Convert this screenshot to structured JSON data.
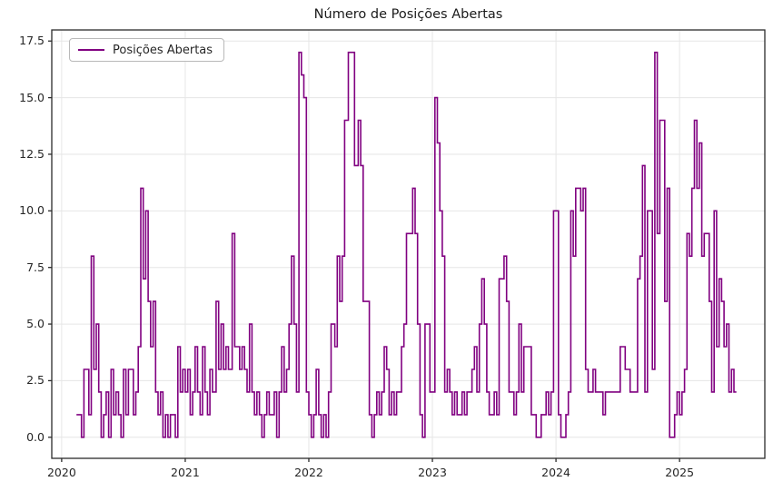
{
  "window": {
    "title": "Número de Posições Abertas"
  },
  "colors": {
    "line": "#800080",
    "grid": "#e6e6e6",
    "spine": "#2b2b2b",
    "tick": "#2b2b2b",
    "text": "#262626",
    "background": "#ffffff"
  },
  "legend": {
    "entries": [
      "Posições Abertas"
    ],
    "position": "upper left"
  },
  "chart_data": {
    "type": "line",
    "title": "Número de Posições Abertas",
    "xlabel": "",
    "ylabel": "",
    "step_interpolation": true,
    "grid": true,
    "legend_entries": [
      "Posições Abertas"
    ],
    "line_color": "#800080",
    "line_width": 1.6,
    "xlim": [
      2019.92,
      2025.69
    ],
    "ylim": [
      -0.93,
      17.99
    ],
    "xticks": [
      2020,
      2021,
      2022,
      2023,
      2024,
      2025
    ],
    "xtick_labels": [
      "2020",
      "2021",
      "2022",
      "2023",
      "2024",
      "2025"
    ],
    "yticks": [
      0.0,
      2.5,
      5.0,
      7.5,
      10.0,
      12.5,
      15.0,
      17.5
    ],
    "ytick_labels": [
      "0.0",
      "2.5",
      "5.0",
      "7.5",
      "10.0",
      "12.5",
      "15.0",
      "17.5"
    ],
    "series": [
      {
        "name": "Posições Abertas",
        "points": [
          [
            2020.12,
            1
          ],
          [
            2020.14,
            1
          ],
          [
            2020.16,
            0
          ],
          [
            2020.18,
            3
          ],
          [
            2020.2,
            3
          ],
          [
            2020.22,
            1
          ],
          [
            2020.24,
            8
          ],
          [
            2020.26,
            3
          ],
          [
            2020.28,
            5
          ],
          [
            2020.3,
            2
          ],
          [
            2020.32,
            0
          ],
          [
            2020.34,
            1
          ],
          [
            2020.36,
            2
          ],
          [
            2020.38,
            0
          ],
          [
            2020.4,
            3
          ],
          [
            2020.42,
            1
          ],
          [
            2020.44,
            2
          ],
          [
            2020.46,
            1
          ],
          [
            2020.48,
            0
          ],
          [
            2020.5,
            3
          ],
          [
            2020.52,
            1
          ],
          [
            2020.54,
            3
          ],
          [
            2020.56,
            3
          ],
          [
            2020.58,
            1
          ],
          [
            2020.6,
            2
          ],
          [
            2020.62,
            4
          ],
          [
            2020.64,
            11
          ],
          [
            2020.66,
            7
          ],
          [
            2020.68,
            10
          ],
          [
            2020.7,
            6
          ],
          [
            2020.72,
            4
          ],
          [
            2020.74,
            6
          ],
          [
            2020.76,
            2
          ],
          [
            2020.78,
            1
          ],
          [
            2020.8,
            2
          ],
          [
            2020.82,
            0
          ],
          [
            2020.84,
            1
          ],
          [
            2020.86,
            0
          ],
          [
            2020.88,
            1
          ],
          [
            2020.9,
            1
          ],
          [
            2020.92,
            0
          ],
          [
            2020.94,
            4
          ],
          [
            2020.96,
            2
          ],
          [
            2020.98,
            3
          ],
          [
            2021.0,
            2
          ],
          [
            2021.02,
            3
          ],
          [
            2021.04,
            1
          ],
          [
            2021.06,
            2
          ],
          [
            2021.08,
            4
          ],
          [
            2021.1,
            2
          ],
          [
            2021.12,
            1
          ],
          [
            2021.14,
            4
          ],
          [
            2021.16,
            2
          ],
          [
            2021.18,
            1
          ],
          [
            2021.2,
            3
          ],
          [
            2021.22,
            2
          ],
          [
            2021.25,
            6
          ],
          [
            2021.27,
            3
          ],
          [
            2021.29,
            5
          ],
          [
            2021.31,
            3
          ],
          [
            2021.33,
            4
          ],
          [
            2021.35,
            3
          ],
          [
            2021.38,
            9
          ],
          [
            2021.4,
            4
          ],
          [
            2021.42,
            4
          ],
          [
            2021.44,
            3
          ],
          [
            2021.46,
            4
          ],
          [
            2021.48,
            3
          ],
          [
            2021.5,
            2
          ],
          [
            2021.52,
            5
          ],
          [
            2021.54,
            2
          ],
          [
            2021.56,
            1
          ],
          [
            2021.58,
            2
          ],
          [
            2021.6,
            1
          ],
          [
            2021.62,
            0
          ],
          [
            2021.64,
            1
          ],
          [
            2021.66,
            2
          ],
          [
            2021.68,
            1
          ],
          [
            2021.7,
            1
          ],
          [
            2021.72,
            2
          ],
          [
            2021.74,
            0
          ],
          [
            2021.76,
            2
          ],
          [
            2021.78,
            4
          ],
          [
            2021.8,
            2
          ],
          [
            2021.82,
            3
          ],
          [
            2021.84,
            5
          ],
          [
            2021.86,
            8
          ],
          [
            2021.88,
            5
          ],
          [
            2021.9,
            2
          ],
          [
            2021.92,
            17
          ],
          [
            2021.94,
            16
          ],
          [
            2021.96,
            15
          ],
          [
            2021.98,
            2
          ],
          [
            2022.0,
            1
          ],
          [
            2022.02,
            0
          ],
          [
            2022.04,
            1
          ],
          [
            2022.06,
            3
          ],
          [
            2022.08,
            1
          ],
          [
            2022.1,
            0
          ],
          [
            2022.12,
            1
          ],
          [
            2022.14,
            0
          ],
          [
            2022.16,
            2
          ],
          [
            2022.18,
            5
          ],
          [
            2022.21,
            4
          ],
          [
            2022.23,
            8
          ],
          [
            2022.25,
            6
          ],
          [
            2022.27,
            8
          ],
          [
            2022.29,
            14
          ],
          [
            2022.32,
            17
          ],
          [
            2022.35,
            17
          ],
          [
            2022.37,
            12
          ],
          [
            2022.4,
            14
          ],
          [
            2022.42,
            12
          ],
          [
            2022.44,
            6
          ],
          [
            2022.47,
            6
          ],
          [
            2022.49,
            1
          ],
          [
            2022.51,
            0
          ],
          [
            2022.53,
            1
          ],
          [
            2022.55,
            2
          ],
          [
            2022.57,
            1
          ],
          [
            2022.59,
            2
          ],
          [
            2022.61,
            4
          ],
          [
            2022.63,
            3
          ],
          [
            2022.65,
            1
          ],
          [
            2022.67,
            2
          ],
          [
            2022.69,
            1
          ],
          [
            2022.71,
            2
          ],
          [
            2022.73,
            2
          ],
          [
            2022.75,
            4
          ],
          [
            2022.77,
            5
          ],
          [
            2022.79,
            9
          ],
          [
            2022.81,
            9
          ],
          [
            2022.84,
            11
          ],
          [
            2022.86,
            9
          ],
          [
            2022.88,
            5
          ],
          [
            2022.9,
            1
          ],
          [
            2022.92,
            0
          ],
          [
            2022.94,
            5
          ],
          [
            2022.96,
            5
          ],
          [
            2022.98,
            2
          ],
          [
            2023.0,
            2
          ],
          [
            2023.02,
            15
          ],
          [
            2023.04,
            13
          ],
          [
            2023.06,
            10
          ],
          [
            2023.08,
            8
          ],
          [
            2023.1,
            2
          ],
          [
            2023.12,
            3
          ],
          [
            2023.14,
            2
          ],
          [
            2023.16,
            1
          ],
          [
            2023.18,
            2
          ],
          [
            2023.2,
            1
          ],
          [
            2023.22,
            1
          ],
          [
            2023.24,
            2
          ],
          [
            2023.26,
            1
          ],
          [
            2023.28,
            2
          ],
          [
            2023.3,
            2
          ],
          [
            2023.32,
            3
          ],
          [
            2023.34,
            4
          ],
          [
            2023.36,
            2
          ],
          [
            2023.38,
            5
          ],
          [
            2023.4,
            7
          ],
          [
            2023.42,
            5
          ],
          [
            2023.44,
            2
          ],
          [
            2023.46,
            1
          ],
          [
            2023.48,
            1
          ],
          [
            2023.5,
            2
          ],
          [
            2023.52,
            1
          ],
          [
            2023.54,
            7
          ],
          [
            2023.56,
            7
          ],
          [
            2023.58,
            8
          ],
          [
            2023.6,
            6
          ],
          [
            2023.62,
            2
          ],
          [
            2023.64,
            2
          ],
          [
            2023.66,
            1
          ],
          [
            2023.68,
            2
          ],
          [
            2023.7,
            5
          ],
          [
            2023.72,
            2
          ],
          [
            2023.74,
            4
          ],
          [
            2023.76,
            4
          ],
          [
            2023.78,
            4
          ],
          [
            2023.8,
            1
          ],
          [
            2023.82,
            1
          ],
          [
            2023.84,
            0
          ],
          [
            2023.86,
            0
          ],
          [
            2023.88,
            1
          ],
          [
            2023.9,
            1
          ],
          [
            2023.92,
            2
          ],
          [
            2023.94,
            1
          ],
          [
            2023.96,
            2
          ],
          [
            2023.98,
            10
          ],
          [
            2024.0,
            10
          ],
          [
            2024.02,
            1
          ],
          [
            2024.04,
            0
          ],
          [
            2024.06,
            0
          ],
          [
            2024.08,
            1
          ],
          [
            2024.1,
            2
          ],
          [
            2024.12,
            10
          ],
          [
            2024.14,
            8
          ],
          [
            2024.16,
            11
          ],
          [
            2024.18,
            11
          ],
          [
            2024.2,
            10
          ],
          [
            2024.22,
            11
          ],
          [
            2024.24,
            3
          ],
          [
            2024.26,
            2
          ],
          [
            2024.28,
            2
          ],
          [
            2024.3,
            3
          ],
          [
            2024.32,
            2
          ],
          [
            2024.34,
            2
          ],
          [
            2024.36,
            2
          ],
          [
            2024.38,
            1
          ],
          [
            2024.4,
            2
          ],
          [
            2024.42,
            2
          ],
          [
            2024.44,
            2
          ],
          [
            2024.46,
            2
          ],
          [
            2024.48,
            2
          ],
          [
            2024.5,
            2
          ],
          [
            2024.52,
            4
          ],
          [
            2024.54,
            4
          ],
          [
            2024.56,
            3
          ],
          [
            2024.58,
            3
          ],
          [
            2024.6,
            2
          ],
          [
            2024.62,
            2
          ],
          [
            2024.64,
            2
          ],
          [
            2024.66,
            7
          ],
          [
            2024.68,
            8
          ],
          [
            2024.7,
            12
          ],
          [
            2024.72,
            2
          ],
          [
            2024.74,
            10
          ],
          [
            2024.76,
            10
          ],
          [
            2024.78,
            3
          ],
          [
            2024.8,
            17
          ],
          [
            2024.82,
            9
          ],
          [
            2024.84,
            14
          ],
          [
            2024.86,
            14
          ],
          [
            2024.88,
            6
          ],
          [
            2024.9,
            11
          ],
          [
            2024.92,
            0
          ],
          [
            2024.94,
            0
          ],
          [
            2024.96,
            1
          ],
          [
            2024.98,
            2
          ],
          [
            2025.0,
            1
          ],
          [
            2025.02,
            2
          ],
          [
            2025.04,
            3
          ],
          [
            2025.06,
            9
          ],
          [
            2025.08,
            8
          ],
          [
            2025.1,
            11
          ],
          [
            2025.12,
            14
          ],
          [
            2025.14,
            11
          ],
          [
            2025.16,
            13
          ],
          [
            2025.18,
            8
          ],
          [
            2025.2,
            9
          ],
          [
            2025.22,
            9
          ],
          [
            2025.24,
            6
          ],
          [
            2025.26,
            2
          ],
          [
            2025.28,
            10
          ],
          [
            2025.3,
            4
          ],
          [
            2025.32,
            7
          ],
          [
            2025.34,
            6
          ],
          [
            2025.36,
            4
          ],
          [
            2025.38,
            5
          ],
          [
            2025.4,
            2
          ],
          [
            2025.42,
            3
          ],
          [
            2025.44,
            2
          ],
          [
            2025.46,
            2
          ]
        ]
      }
    ]
  }
}
